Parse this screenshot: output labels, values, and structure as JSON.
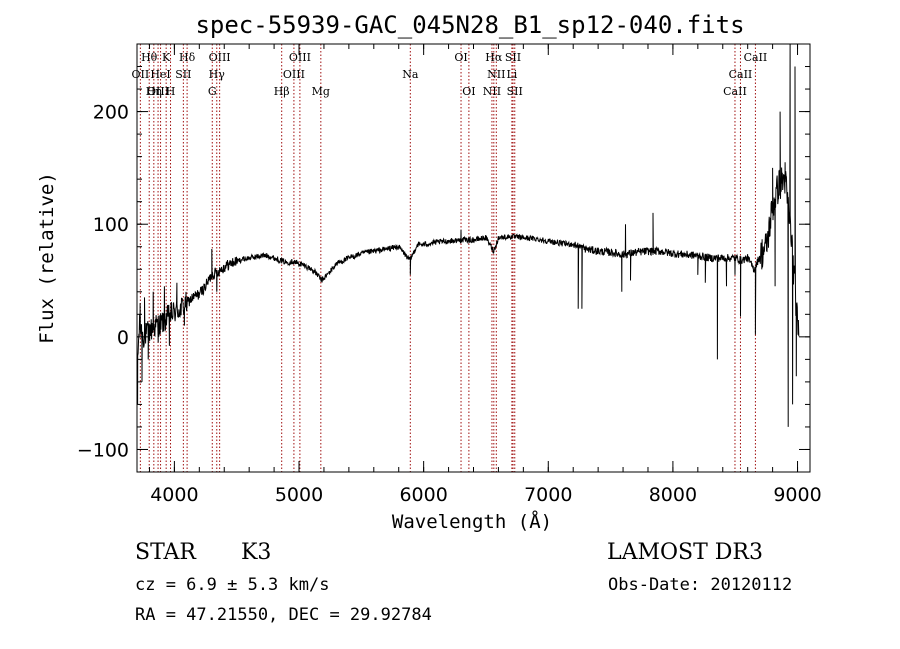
{
  "chart_data": {
    "type": "line",
    "title": "spec-55939-GAC_045N28_B1_sp12-040.fits",
    "xlabel": "Wavelength (Å)",
    "ylabel": "Flux (relative)",
    "xlim": [
      3700,
      9100
    ],
    "ylim": [
      -120,
      260
    ],
    "xticks": [
      4000,
      5000,
      6000,
      7000,
      8000,
      9000
    ],
    "yticks": [
      -100,
      0,
      100,
      200
    ],
    "x_minor_step": 200,
    "y_minor_step": 20,
    "line_color": "#000000",
    "marker_color": "#a01010",
    "series": [
      {
        "name": "flux",
        "anchors": [
          [
            3700,
            -30
          ],
          [
            3720,
            10
          ],
          [
            3750,
            0
          ],
          [
            3800,
            5
          ],
          [
            3850,
            10
          ],
          [
            3900,
            12
          ],
          [
            3950,
            18
          ],
          [
            4000,
            22
          ],
          [
            4050,
            25
          ],
          [
            4100,
            30
          ],
          [
            4150,
            35
          ],
          [
            4200,
            38
          ],
          [
            4250,
            45
          ],
          [
            4300,
            55
          ],
          [
            4350,
            58
          ],
          [
            4400,
            62
          ],
          [
            4450,
            65
          ],
          [
            4500,
            67
          ],
          [
            4550,
            69
          ],
          [
            4600,
            70
          ],
          [
            4650,
            71
          ],
          [
            4700,
            72
          ],
          [
            4750,
            72
          ],
          [
            4800,
            70
          ],
          [
            4850,
            68
          ],
          [
            4900,
            66
          ],
          [
            4950,
            67
          ],
          [
            5000,
            65
          ],
          [
            5050,
            63
          ],
          [
            5100,
            60
          ],
          [
            5150,
            55
          ],
          [
            5180,
            50
          ],
          [
            5200,
            52
          ],
          [
            5250,
            58
          ],
          [
            5300,
            65
          ],
          [
            5400,
            70
          ],
          [
            5500,
            74
          ],
          [
            5600,
            76
          ],
          [
            5700,
            78
          ],
          [
            5800,
            80
          ],
          [
            5890,
            68
          ],
          [
            5950,
            82
          ],
          [
            6000,
            82
          ],
          [
            6100,
            84
          ],
          [
            6200,
            85
          ],
          [
            6300,
            86
          ],
          [
            6400,
            86
          ],
          [
            6500,
            88
          ],
          [
            6563,
            76
          ],
          [
            6600,
            88
          ],
          [
            6700,
            89
          ],
          [
            6800,
            88
          ],
          [
            6900,
            87
          ],
          [
            7000,
            85
          ],
          [
            7100,
            83
          ],
          [
            7200,
            82
          ],
          [
            7300,
            78
          ],
          [
            7400,
            76
          ],
          [
            7500,
            75
          ],
          [
            7600,
            73
          ],
          [
            7700,
            75
          ],
          [
            7800,
            76
          ],
          [
            7900,
            76
          ],
          [
            8000,
            74
          ],
          [
            8100,
            73
          ],
          [
            8200,
            72
          ],
          [
            8300,
            70
          ],
          [
            8400,
            70
          ],
          [
            8500,
            70
          ],
          [
            8550,
            68
          ],
          [
            8600,
            70
          ],
          [
            8650,
            60
          ],
          [
            8700,
            72
          ],
          [
            8750,
            80
          ],
          [
            8800,
            115
          ],
          [
            8850,
            135
          ],
          [
            8900,
            140
          ],
          [
            8950,
            90
          ],
          [
            9000,
            10
          ]
        ],
        "spikes": [
          [
            3705,
            -60
          ],
          [
            3725,
            30
          ],
          [
            3740,
            -40
          ],
          [
            3760,
            35
          ],
          [
            3790,
            -20
          ],
          [
            3830,
            40
          ],
          [
            3870,
            -5
          ],
          [
            3920,
            45
          ],
          [
            3960,
            -8
          ],
          [
            4020,
            48
          ],
          [
            4080,
            10
          ],
          [
            4300,
            78
          ],
          [
            4340,
            40
          ],
          [
            5893,
            55
          ],
          [
            6300,
            95
          ],
          [
            7240,
            25
          ],
          [
            7270,
            25
          ],
          [
            7590,
            40
          ],
          [
            7620,
            100
          ],
          [
            7660,
            50
          ],
          [
            7840,
            110
          ],
          [
            8200,
            55
          ],
          [
            8260,
            48
          ],
          [
            8357,
            -20
          ],
          [
            8430,
            45
          ],
          [
            8498,
            55
          ],
          [
            8542,
            18
          ],
          [
            8662,
            2
          ],
          [
            8800,
            150
          ],
          [
            8820,
            45
          ],
          [
            8860,
            200
          ],
          [
            8900,
            155
          ],
          [
            8925,
            -80
          ],
          [
            8940,
            300
          ],
          [
            8960,
            -60
          ],
          [
            8980,
            240
          ],
          [
            8990,
            -35
          ],
          [
            9000,
            15
          ]
        ]
      }
    ],
    "lines_top": [
      {
        "label": "Hθ",
        "x": 3798
      },
      {
        "label": "K",
        "x": 3934
      },
      {
        "label": "Hδ",
        "x": 4102
      },
      {
        "label": "OIII",
        "x": 4363
      },
      {
        "label": "OIII",
        "x": 5007
      },
      {
        "label": "OI",
        "x": 6300
      },
      {
        "label": "Hα",
        "x": 6563
      },
      {
        "label": "SII",
        "x": 6717
      },
      {
        "label": "CaII",
        "x": 8662
      }
    ],
    "lines_mid": [
      {
        "label": "OII",
        "x": 3727
      },
      {
        "label": "HeI",
        "x": 3889
      },
      {
        "label": "SII",
        "x": 4072
      },
      {
        "label": "Hγ",
        "x": 4340
      },
      {
        "label": "OIII",
        "x": 4959
      },
      {
        "label": "Na",
        "x": 5893
      },
      {
        "label": "NII",
        "x": 6583
      },
      {
        "label": "Li",
        "x": 6708
      },
      {
        "label": "CaII",
        "x": 8542
      }
    ],
    "lines_low": [
      {
        "label": "OIII",
        "x": 3869
      },
      {
        "label": "Hη",
        "x": 3835
      },
      {
        "label": "H",
        "x": 3969
      },
      {
        "label": "G",
        "x": 4304
      },
      {
        "label": "Hβ",
        "x": 4861
      },
      {
        "label": "Mg",
        "x": 5175
      },
      {
        "label": "OI",
        "x": 6363
      },
      {
        "label": "NII",
        "x": 6548
      },
      {
        "label": "SII",
        "x": 6731
      },
      {
        "label": "CaII",
        "x": 8498
      }
    ]
  },
  "info": {
    "object_class": "STAR",
    "subclass": "K3",
    "survey": "LAMOST DR3",
    "cz": "cz = 6.9 ± 5.3 km/s",
    "obs_date": "Obs-Date: 20120112",
    "radec": "RA =  47.21550, DEC =  29.92784"
  }
}
